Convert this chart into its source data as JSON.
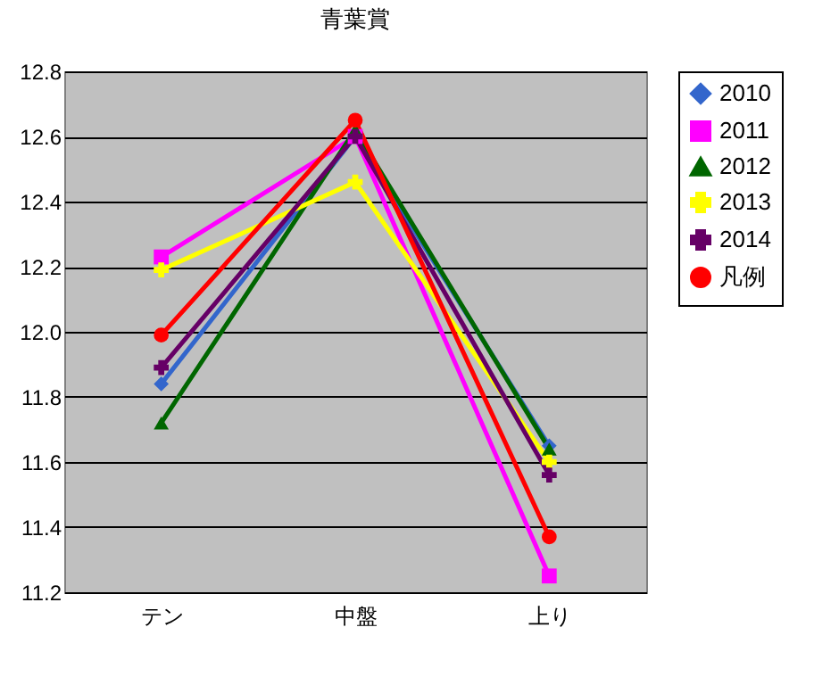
{
  "chart_data": {
    "type": "line",
    "title": "青葉賞",
    "categories": [
      "テン",
      "中盤",
      "上り"
    ],
    "series": [
      {
        "name": "2010",
        "color": "#3366cc",
        "marker": "diamond",
        "values": [
          11.84,
          12.6,
          11.65
        ]
      },
      {
        "name": "2011",
        "color": "#ff00ff",
        "marker": "square",
        "values": [
          12.23,
          12.6,
          11.25
        ]
      },
      {
        "name": "2012",
        "color": "#006600",
        "marker": "triangle",
        "values": [
          11.72,
          12.62,
          11.64
        ]
      },
      {
        "name": "2013",
        "color": "#ffff00",
        "marker": "cross",
        "values": [
          12.19,
          12.46,
          11.6
        ]
      },
      {
        "name": "2014",
        "color": "#660066",
        "marker": "cross",
        "values": [
          11.89,
          12.6,
          11.56
        ]
      },
      {
        "name": "凡例",
        "color": "#ff0000",
        "marker": "circle",
        "values": [
          11.99,
          12.65,
          11.37
        ]
      }
    ],
    "ylim": [
      11.2,
      12.8
    ],
    "yticks": [
      11.2,
      11.4,
      11.6,
      11.8,
      {
        "value": 12,
        "label": "12.0"
      },
      12.2,
      12.4,
      12.6,
      12.8
    ],
    "grid": "y",
    "legend": "right"
  }
}
